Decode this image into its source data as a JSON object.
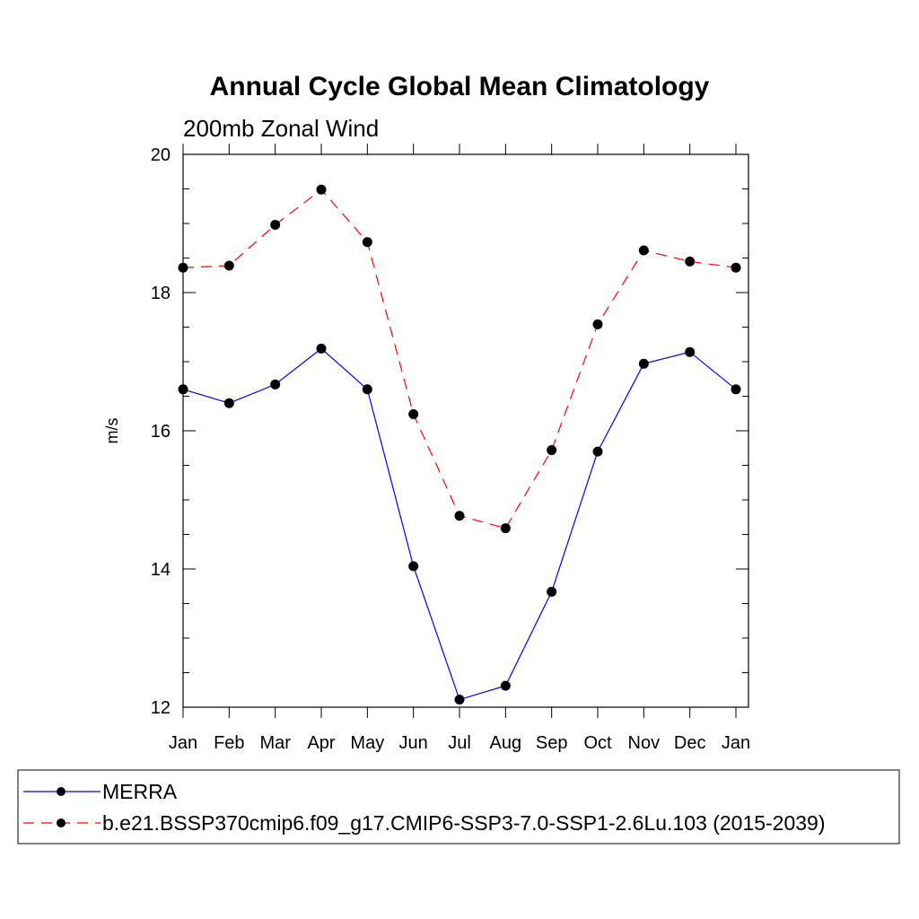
{
  "chart_data": {
    "type": "line",
    "title": "Annual Cycle Global Mean Climatology",
    "subtitle": "200mb Zonal Wind",
    "xlabel": "",
    "ylabel": "m/s",
    "categories": [
      "Jan",
      "Feb",
      "Mar",
      "Apr",
      "May",
      "Jun",
      "Jul",
      "Aug",
      "Sep",
      "Oct",
      "Nov",
      "Dec",
      "Jan"
    ],
    "ylim": [
      12,
      20
    ],
    "yticks": [
      12,
      14,
      16,
      18,
      20
    ],
    "grid": false,
    "legend_position": "bottom",
    "series": [
      {
        "name": "MERRA",
        "color": "#0000ff",
        "line_style": "solid",
        "marker": "filled-circle",
        "values": [
          16.6,
          16.4,
          16.67,
          17.19,
          16.6,
          14.04,
          12.11,
          12.31,
          13.67,
          15.7,
          16.97,
          17.14,
          16.6
        ]
      },
      {
        "name": "b.e21.BSSP370cmip6.f09_g17.CMIP6-SSP3-7.0-SSP1-2.6Lu.103 (2015-2039)",
        "color": "#ff0000",
        "line_style": "dashed",
        "marker": "filled-circle",
        "values": [
          18.36,
          18.39,
          18.98,
          19.49,
          18.73,
          16.24,
          14.77,
          14.59,
          15.72,
          17.54,
          18.61,
          18.45,
          18.36
        ]
      }
    ]
  }
}
